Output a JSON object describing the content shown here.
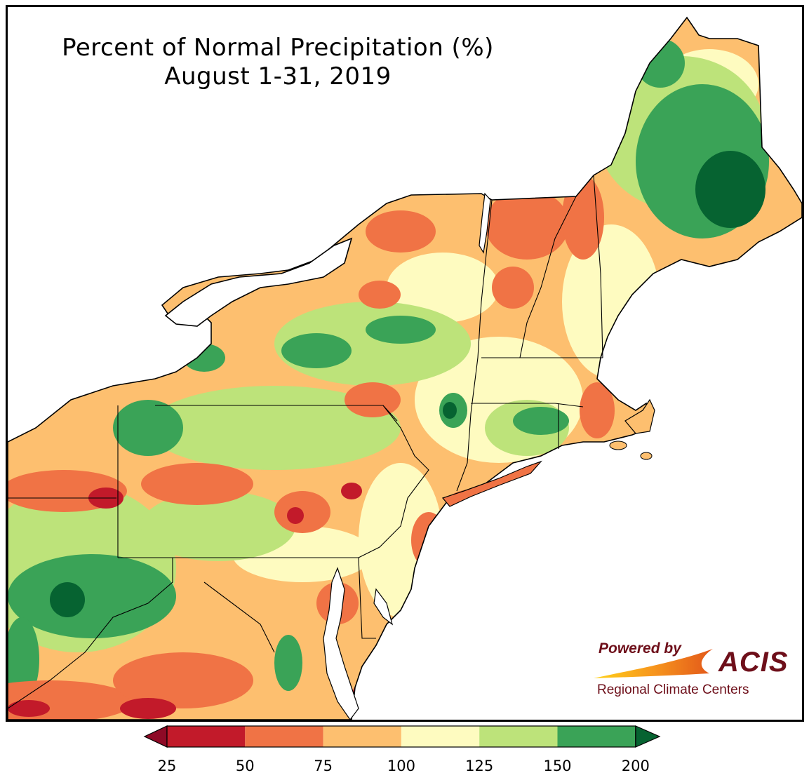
{
  "title": {
    "line1": "Percent of Normal Precipitation (%)",
    "line2": "August 1-31, 2019"
  },
  "logo": {
    "powered_by": "Powered by",
    "name": "ACIS",
    "subtitle": "Regional Climate Centers"
  },
  "legend": {
    "ticks": [
      "25",
      "50",
      "75",
      "100",
      "125",
      "150",
      "200"
    ],
    "bins": [
      {
        "range": "25-50",
        "color": "#c21a2a"
      },
      {
        "range": "50-75",
        "color": "#f07345"
      },
      {
        "range": "75-100",
        "color": "#fdbf6f"
      },
      {
        "range": "100-125",
        "color": "#fefbc0"
      },
      {
        "range": "125-150",
        "color": "#bde37a"
      },
      {
        "range": "150-200",
        "color": "#3aa357"
      }
    ],
    "under_color": "#8e0a26",
    "over_color": "#066331"
  },
  "colors": {
    "dark_red": "#c21a2a",
    "orange": "#f07345",
    "light_orange": "#fdbf6f",
    "pale_yellow": "#fefbc0",
    "light_green": "#bde37a",
    "green": "#3aa357",
    "dark_green": "#066331",
    "water": "#ffffff",
    "logo_red": "#6e0f1a"
  }
}
